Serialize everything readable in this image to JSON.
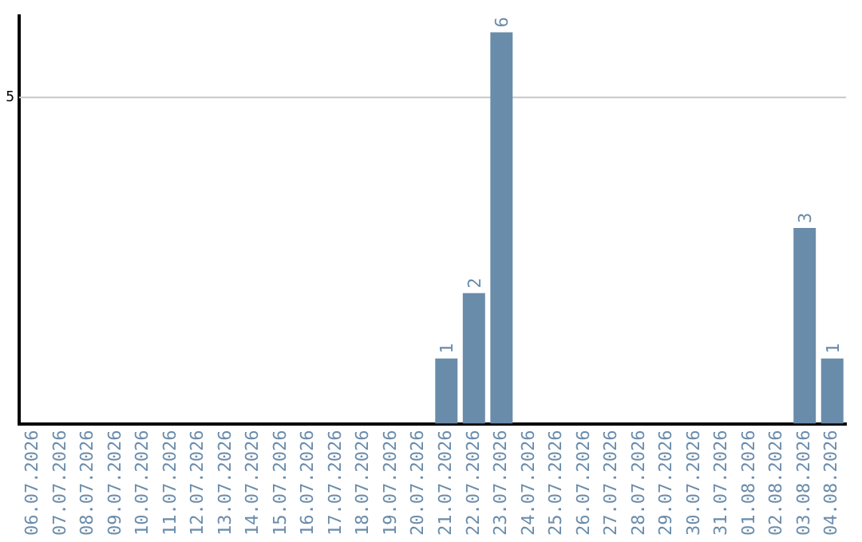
{
  "chart_data": {
    "type": "bar",
    "categories": [
      "06.07.2026",
      "07.07.2026",
      "08.07.2026",
      "09.07.2026",
      "10.07.2026",
      "11.07.2026",
      "12.07.2026",
      "13.07.2026",
      "14.07.2026",
      "15.07.2026",
      "16.07.2026",
      "17.07.2026",
      "18.07.2026",
      "19.07.2026",
      "20.07.2026",
      "21.07.2026",
      "22.07.2026",
      "23.07.2026",
      "24.07.2026",
      "25.07.2026",
      "26.07.2026",
      "27.07.2026",
      "28.07.2026",
      "29.07.2026",
      "30.07.2026",
      "31.07.2026",
      "01.08.2026",
      "02.08.2026",
      "03.08.2026",
      "04.08.2026"
    ],
    "values": [
      null,
      null,
      null,
      null,
      null,
      null,
      null,
      null,
      null,
      null,
      null,
      null,
      null,
      null,
      null,
      1,
      2,
      6,
      null,
      null,
      null,
      null,
      null,
      null,
      null,
      null,
      null,
      null,
      3,
      1
    ],
    "data_labels": true,
    "color": "#6a8cab",
    "ylim": [
      0,
      6.25
    ],
    "ref_lines": [
      {
        "axis": "y",
        "value": 5,
        "label": "5",
        "color": "#c8c8c8"
      }
    ],
    "legend": false
  }
}
